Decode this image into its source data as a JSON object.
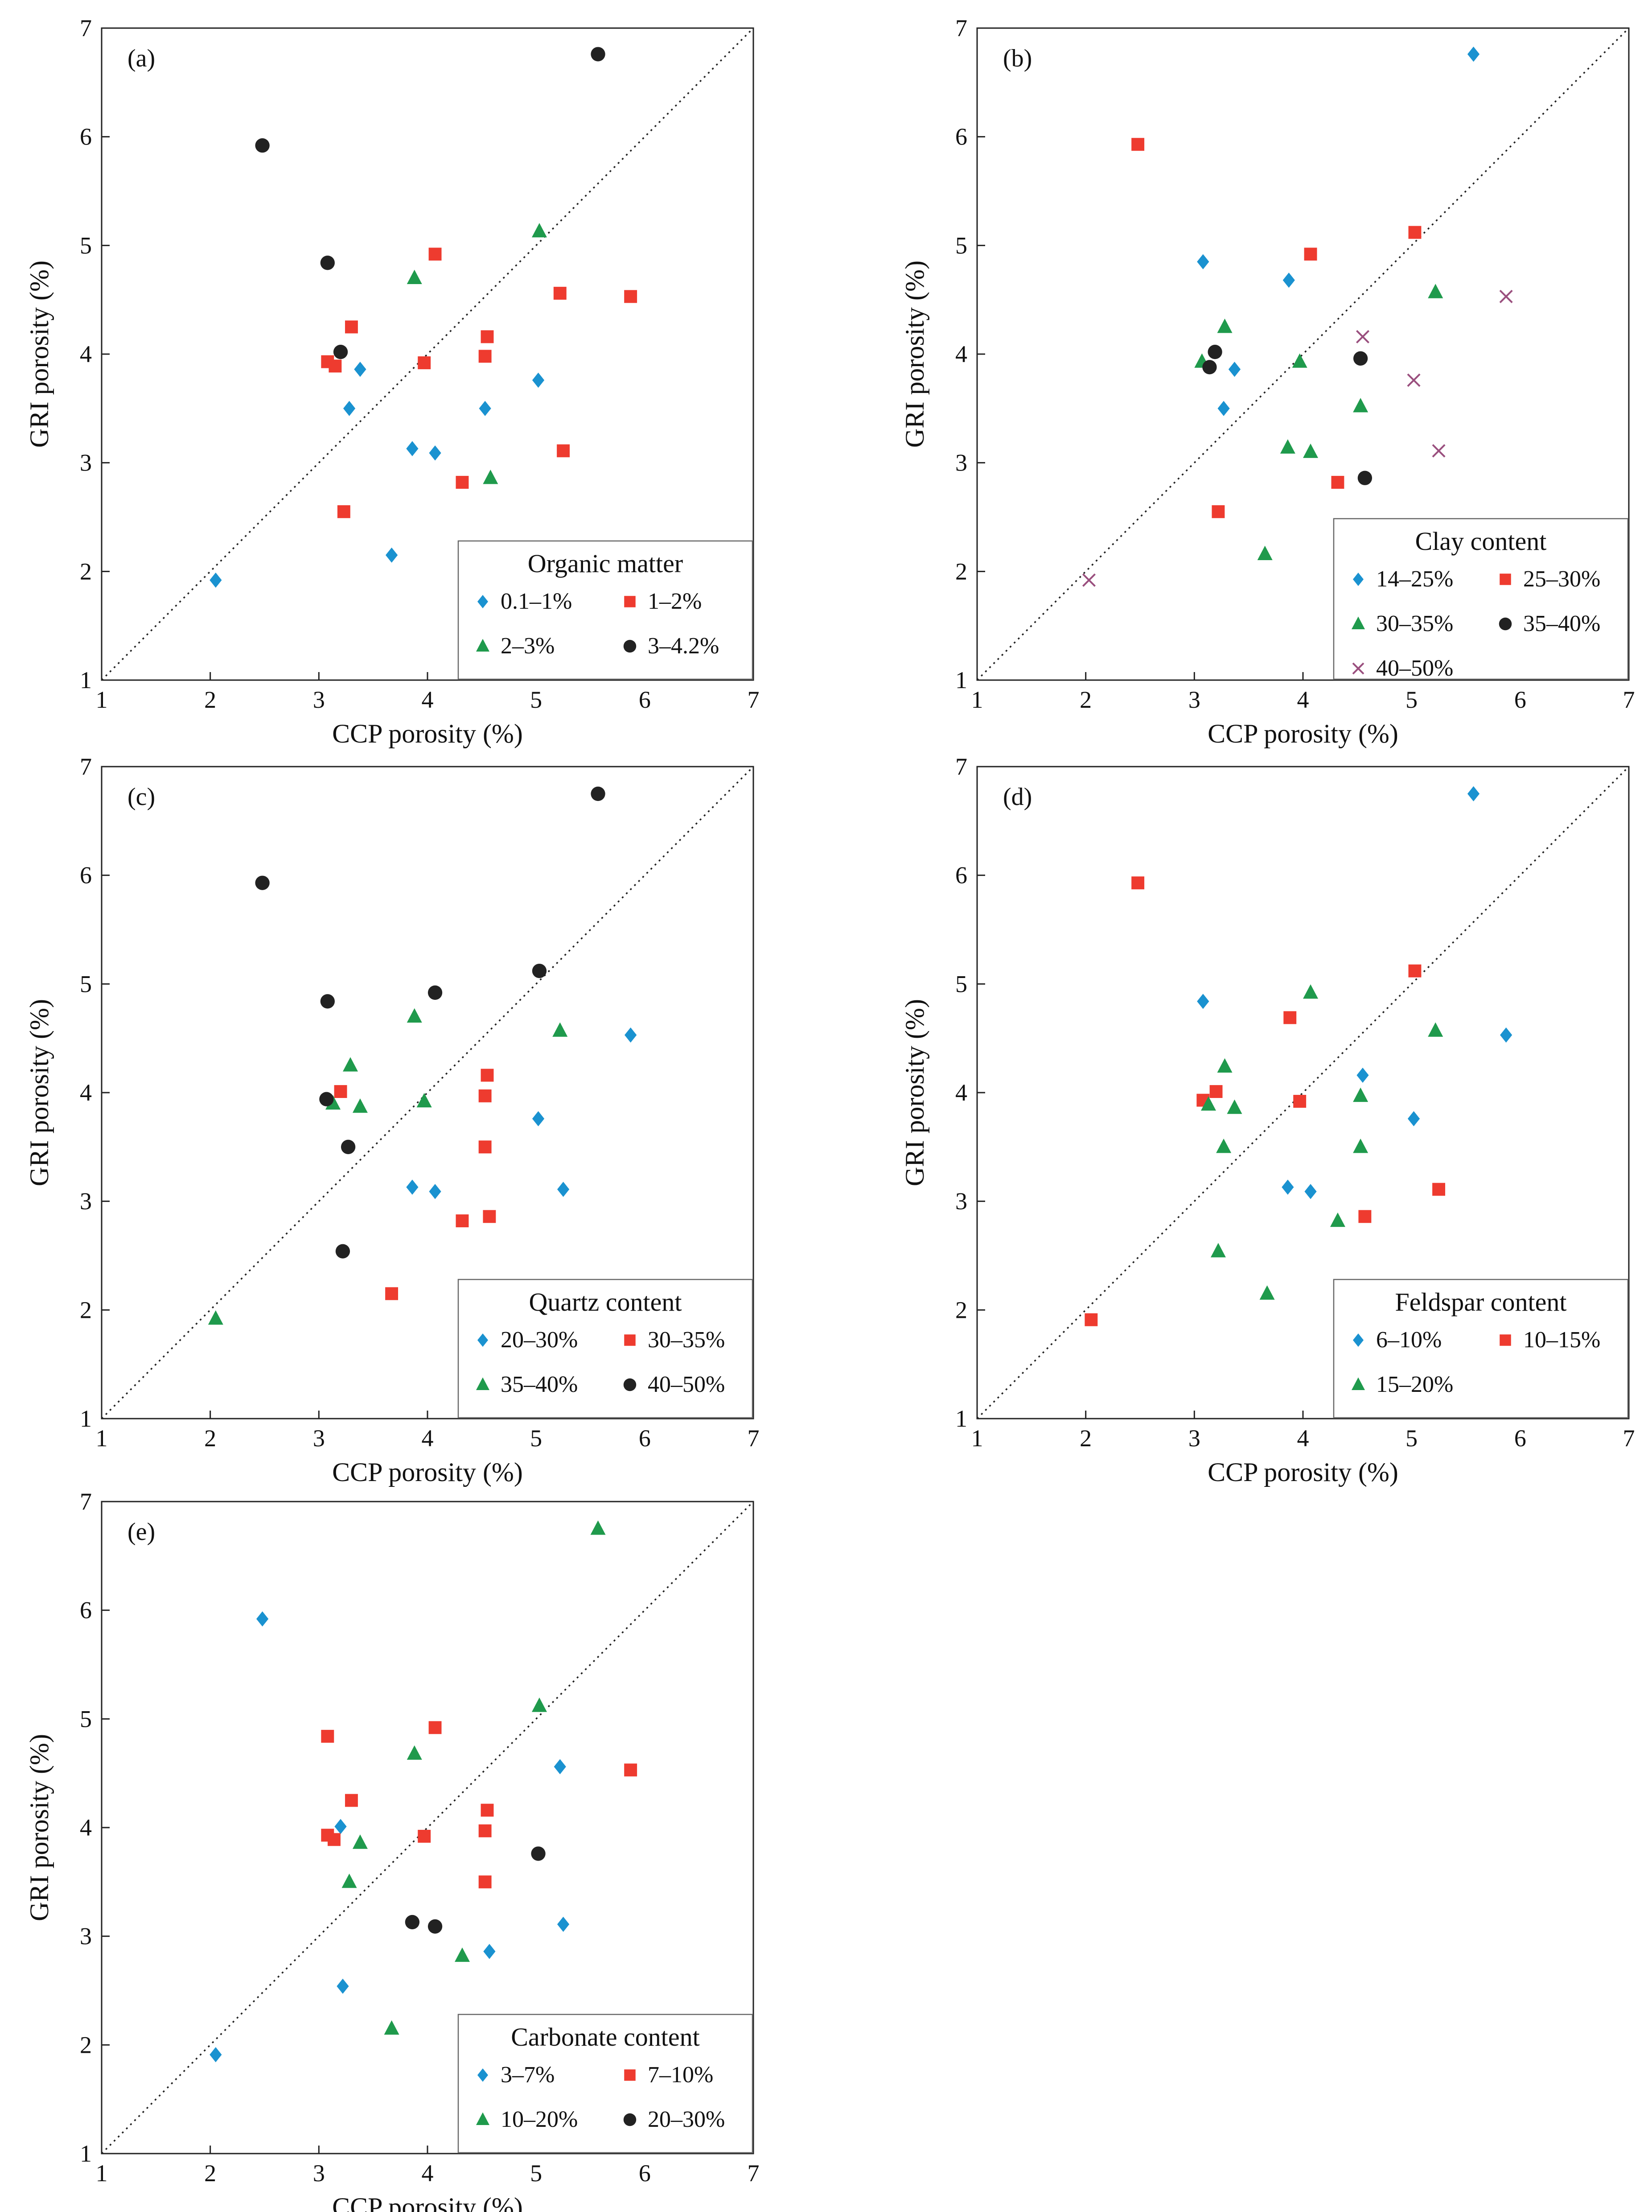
{
  "figure": {
    "colors": {
      "blue": "#1a92d0",
      "red": "#ee3b2f",
      "green": "#1f9a4c",
      "black": "#222222",
      "purple": "#9a4f7e"
    },
    "markers": {
      "blue": "diamond",
      "red": "square",
      "green": "triangle",
      "black": "circle",
      "purple": "cross"
    }
  },
  "chart_data": [
    {
      "type": "scatter",
      "panel_label": "(a)",
      "xlabel": "CCP porosity  (%)",
      "ylabel": "GRI porosity (%)",
      "xlim": [
        1,
        7
      ],
      "ylim": [
        1,
        7
      ],
      "xticks": [
        "1",
        "2",
        "3",
        "4",
        "5",
        "6",
        "7"
      ],
      "yticks": [
        "1",
        "2",
        "3",
        "4",
        "5",
        "6",
        "7"
      ],
      "reference_line": "y = x",
      "legend": {
        "title": "Organic matter",
        "columns": 2,
        "position": "bottom-right"
      },
      "series": [
        {
          "name": "0.1–1%",
          "color": "blue",
          "marker": "diamond",
          "points": [
            [
              2.05,
              1.92
            ],
            [
              3.28,
              3.5
            ],
            [
              3.38,
              3.86
            ],
            [
              3.67,
              2.15
            ],
            [
              3.86,
              3.13
            ],
            [
              4.07,
              3.09
            ],
            [
              4.53,
              3.5
            ],
            [
              5.02,
              3.76
            ]
          ]
        },
        {
          "name": "1–2%",
          "color": "red",
          "marker": "square",
          "points": [
            [
              3.08,
              3.93
            ],
            [
              3.15,
              3.89
            ],
            [
              3.23,
              2.55
            ],
            [
              3.3,
              4.25
            ],
            [
              3.97,
              3.92
            ],
            [
              4.07,
              4.92
            ],
            [
              4.32,
              2.82
            ],
            [
              4.53,
              3.98
            ],
            [
              4.55,
              4.16
            ],
            [
              5.22,
              4.56
            ],
            [
              5.25,
              3.11
            ],
            [
              5.87,
              4.53
            ]
          ]
        },
        {
          "name": "2–3%",
          "color": "green",
          "marker": "triangle",
          "points": [
            [
              3.88,
              4.7
            ],
            [
              4.58,
              2.86
            ],
            [
              5.03,
              5.13
            ]
          ]
        },
        {
          "name": "3–4.2%",
          "color": "black",
          "marker": "circle",
          "points": [
            [
              2.48,
              5.92
            ],
            [
              3.08,
              4.84
            ],
            [
              3.2,
              4.02
            ],
            [
              5.57,
              6.76
            ]
          ]
        }
      ]
    },
    {
      "type": "scatter",
      "panel_label": "(b)",
      "xlabel": "CCP porosity  (%)",
      "ylabel": "GRI porosity (%)",
      "xlim": [
        1,
        7
      ],
      "ylim": [
        1,
        7
      ],
      "xticks": [
        "1",
        "2",
        "3",
        "4",
        "5",
        "6",
        "7"
      ],
      "yticks": [
        "1",
        "2",
        "3",
        "4",
        "5",
        "6",
        "7"
      ],
      "reference_line": "y = x",
      "legend": {
        "title": "Clay content",
        "columns": 2,
        "position": "bottom-right"
      },
      "series": [
        {
          "name": "14–25%",
          "color": "blue",
          "marker": "diamond",
          "points": [
            [
              3.08,
              4.85
            ],
            [
              3.27,
              3.5
            ],
            [
              3.37,
              3.86
            ],
            [
              3.87,
              4.68
            ],
            [
              5.57,
              6.76
            ]
          ]
        },
        {
          "name": "25–30%",
          "color": "red",
          "marker": "square",
          "points": [
            [
              2.48,
              5.93
            ],
            [
              3.22,
              2.55
            ],
            [
              4.07,
              4.92
            ],
            [
              4.32,
              2.82
            ],
            [
              5.03,
              5.12
            ]
          ]
        },
        {
          "name": "30–35%",
          "color": "green",
          "marker": "triangle",
          "points": [
            [
              3.07,
              3.93
            ],
            [
              3.28,
              4.25
            ],
            [
              3.65,
              2.16
            ],
            [
              3.86,
              3.14
            ],
            [
              3.97,
              3.93
            ],
            [
              4.07,
              3.1
            ],
            [
              4.53,
              3.52
            ],
            [
              5.22,
              4.57
            ]
          ]
        },
        {
          "name": "35–40%",
          "color": "black",
          "marker": "circle",
          "points": [
            [
              3.14,
              3.88
            ],
            [
              3.19,
              4.02
            ],
            [
              4.53,
              3.96
            ],
            [
              4.57,
              2.86
            ]
          ]
        },
        {
          "name": "40–50%",
          "color": "purple",
          "marker": "cross",
          "points": [
            [
              2.03,
              1.92
            ],
            [
              4.55,
              4.16
            ],
            [
              5.02,
              3.76
            ],
            [
              5.25,
              3.11
            ],
            [
              5.87,
              4.53
            ]
          ]
        }
      ]
    },
    {
      "type": "scatter",
      "panel_label": "(c)",
      "xlabel": "CCP porosity  (%)",
      "ylabel": "GRI porosity (%)",
      "xlim": [
        1,
        7
      ],
      "ylim": [
        1,
        7
      ],
      "xticks": [
        "1",
        "2",
        "3",
        "4",
        "5",
        "6",
        "7"
      ],
      "yticks": [
        "1",
        "2",
        "3",
        "4",
        "5",
        "6",
        "7"
      ],
      "reference_line": "y = x",
      "legend": {
        "title": "Quartz content",
        "columns": 2,
        "position": "bottom-right"
      },
      "series": [
        {
          "name": "20–30%",
          "color": "blue",
          "marker": "diamond",
          "points": [
            [
              3.86,
              3.13
            ],
            [
              4.07,
              3.09
            ],
            [
              5.02,
              3.76
            ],
            [
              5.25,
              3.11
            ],
            [
              5.87,
              4.53
            ]
          ]
        },
        {
          "name": "30–35%",
          "color": "red",
          "marker": "square",
          "points": [
            [
              3.2,
              4.01
            ],
            [
              3.67,
              2.15
            ],
            [
              4.32,
              2.82
            ],
            [
              4.53,
              3.97
            ],
            [
              4.55,
              4.16
            ],
            [
              4.53,
              3.5
            ],
            [
              4.57,
              2.86
            ]
          ]
        },
        {
          "name": "35–40%",
          "color": "green",
          "marker": "triangle",
          "points": [
            [
              2.05,
              1.92
            ],
            [
              3.13,
              3.9
            ],
            [
              3.29,
              4.25
            ],
            [
              3.38,
              3.87
            ],
            [
              3.88,
              4.7
            ],
            [
              3.97,
              3.92
            ],
            [
              5.22,
              4.57
            ]
          ]
        },
        {
          "name": "40–50%",
          "color": "black",
          "marker": "circle",
          "points": [
            [
              2.48,
              5.93
            ],
            [
              3.08,
              4.84
            ],
            [
              3.07,
              3.94
            ],
            [
              3.27,
              3.5
            ],
            [
              3.22,
              2.54
            ],
            [
              4.07,
              4.92
            ],
            [
              5.03,
              5.12
            ],
            [
              5.57,
              6.75
            ]
          ]
        }
      ]
    },
    {
      "type": "scatter",
      "panel_label": "(d)",
      "xlabel": "CCP porosity  (%)",
      "ylabel": "GRI porosity (%)",
      "xlim": [
        1,
        7
      ],
      "ylim": [
        1,
        7
      ],
      "xticks": [
        "1",
        "2",
        "3",
        "4",
        "5",
        "6",
        "7"
      ],
      "yticks": [
        "1",
        "2",
        "3",
        "4",
        "5",
        "6",
        "7"
      ],
      "reference_line": "y = x",
      "legend": {
        "title": "Feldspar content",
        "columns": 2,
        "position": "bottom-right"
      },
      "series": [
        {
          "name": "6–10%",
          "color": "blue",
          "marker": "diamond",
          "points": [
            [
              3.08,
              4.84
            ],
            [
              3.86,
              3.13
            ],
            [
              4.07,
              3.09
            ],
            [
              4.55,
              4.16
            ],
            [
              5.02,
              3.76
            ],
            [
              5.57,
              6.75
            ],
            [
              5.87,
              4.53
            ]
          ]
        },
        {
          "name": "10–15%",
          "color": "red",
          "marker": "square",
          "points": [
            [
              2.05,
              1.91
            ],
            [
              2.48,
              5.93
            ],
            [
              3.08,
              3.93
            ],
            [
              3.2,
              4.01
            ],
            [
              3.88,
              4.69
            ],
            [
              3.97,
              3.92
            ],
            [
              4.57,
              2.86
            ],
            [
              5.03,
              5.12
            ],
            [
              5.25,
              3.11
            ]
          ]
        },
        {
          "name": "15–20%",
          "color": "green",
          "marker": "triangle",
          "points": [
            [
              3.13,
              3.89
            ],
            [
              3.28,
              4.24
            ],
            [
              3.27,
              3.5
            ],
            [
              3.37,
              3.86
            ],
            [
              3.22,
              2.54
            ],
            [
              3.67,
              2.15
            ],
            [
              4.07,
              4.92
            ],
            [
              4.32,
              2.82
            ],
            [
              4.53,
              3.97
            ],
            [
              4.53,
              3.5
            ],
            [
              5.22,
              4.57
            ]
          ]
        }
      ]
    },
    {
      "type": "scatter",
      "panel_label": "(e)",
      "xlabel": "CCP porosity  (%)",
      "ylabel": "GRI porosity (%)",
      "xlim": [
        1,
        7
      ],
      "ylim": [
        1,
        7
      ],
      "xticks": [
        "1",
        "2",
        "3",
        "4",
        "5",
        "6",
        "7"
      ],
      "yticks": [
        "1",
        "2",
        "3",
        "4",
        "5",
        "6",
        "7"
      ],
      "reference_line": "y = x",
      "legend": {
        "title": "Carbonate content",
        "columns": 2,
        "position": "bottom-right"
      },
      "series": [
        {
          "name": "3–7%",
          "color": "blue",
          "marker": "diamond",
          "points": [
            [
              2.05,
              1.91
            ],
            [
              2.48,
              5.92
            ],
            [
              3.2,
              4.01
            ],
            [
              3.22,
              2.54
            ],
            [
              4.57,
              2.86
            ],
            [
              5.22,
              4.56
            ],
            [
              5.25,
              3.11
            ]
          ]
        },
        {
          "name": "7–10%",
          "color": "red",
          "marker": "square",
          "points": [
            [
              3.08,
              3.93
            ],
            [
              3.08,
              4.84
            ],
            [
              3.14,
              3.89
            ],
            [
              3.3,
              4.25
            ],
            [
              3.97,
              3.92
            ],
            [
              4.07,
              4.92
            ],
            [
              4.53,
              3.97
            ],
            [
              4.55,
              4.16
            ],
            [
              4.53,
              3.5
            ],
            [
              5.87,
              4.53
            ]
          ]
        },
        {
          "name": "10–20%",
          "color": "green",
          "marker": "triangle",
          "points": [
            [
              3.28,
              3.5
            ],
            [
              3.38,
              3.86
            ],
            [
              3.67,
              2.15
            ],
            [
              3.88,
              4.68
            ],
            [
              4.32,
              2.82
            ],
            [
              5.03,
              5.12
            ],
            [
              5.57,
              6.75
            ]
          ]
        },
        {
          "name": "20–30%",
          "color": "black",
          "marker": "circle",
          "points": [
            [
              3.86,
              3.13
            ],
            [
              4.07,
              3.09
            ],
            [
              5.02,
              3.76
            ]
          ]
        }
      ]
    }
  ]
}
